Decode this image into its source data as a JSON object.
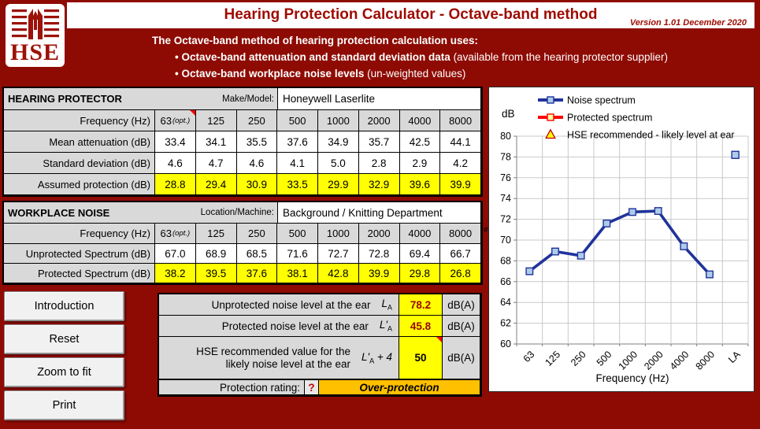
{
  "header": {
    "logo_text": "HSE",
    "title": "Hearing Protection Calculator - Octave-band method",
    "version": "Version 1.01 December 2020",
    "intro_line": "The Octave-band method of hearing protection calculation uses:",
    "bullet_glyph": "•",
    "bullets": [
      {
        "bold": "Octave-band attenuation and standard deviation data",
        "rest": " (available from the hearing protector supplier)"
      },
      {
        "bold": "Octave-band workplace noise levels",
        "rest": " (un-weighted values)"
      }
    ]
  },
  "protector": {
    "title": "HEARING PROTECTOR",
    "make_label": "Make/Model:",
    "make_value": "Honeywell Laserlite",
    "freq_label": "Frequency (Hz)",
    "freq_opt_suffix": "(opt.)",
    "freqs": [
      "63",
      "125",
      "250",
      "500",
      "1000",
      "2000",
      "4000",
      "8000"
    ],
    "mean_label": "Mean attenuation (dB)",
    "mean": [
      "33.4",
      "34.1",
      "35.5",
      "37.6",
      "34.9",
      "35.7",
      "42.5",
      "44.1"
    ],
    "sd_label": "Standard deviation (dB)",
    "sd": [
      "4.6",
      "4.7",
      "4.6",
      "4.1",
      "5.0",
      "2.8",
      "2.9",
      "4.2"
    ],
    "assumed_label": "Assumed protection (dB)",
    "assumed": [
      "28.8",
      "29.4",
      "30.9",
      "33.5",
      "29.9",
      "32.9",
      "39.6",
      "39.9"
    ]
  },
  "workplace": {
    "title": "WORKPLACE NOISE",
    "location_label": "Location/Machine:",
    "location_value": "Background / Knitting Department",
    "freq_label": "Frequency (Hz)",
    "freq_opt_suffix": "(opt.)",
    "freqs": [
      "63",
      "125",
      "250",
      "500",
      "1000",
      "2000",
      "4000",
      "8000"
    ],
    "unprotected_label": "Unprotected Spectrum (dB)",
    "unprotected": [
      "67.0",
      "68.9",
      "68.5",
      "71.6",
      "72.7",
      "72.8",
      "69.4",
      "66.7"
    ],
    "protected_label": "Protected Spectrum (dB)",
    "protected": [
      "38.2",
      "39.5",
      "37.6",
      "38.1",
      "42.8",
      "39.9",
      "29.8",
      "26.8"
    ],
    "overflow_marker": "#"
  },
  "buttons": [
    "Introduction",
    "Reset",
    "Zoom to fit",
    "Print"
  ],
  "results": {
    "row1_label": "Unprotected noise level at the ear",
    "row1_symbol": "L",
    "row1_sub": "A",
    "row1_value": "78.2",
    "row1_unit": "dB(A)",
    "row2_label": "Protected noise level at the ear",
    "row2_symbol": "L'",
    "row2_sub": "A",
    "row2_value": "45.8",
    "row2_unit": "dB(A)",
    "row3_label_line1": "HSE recommended value for the",
    "row3_label_line2": "likely noise level at the ear",
    "row3_symbol": "L'",
    "row3_sub": "A",
    "row3_suffix": " + 4",
    "row3_value": "50",
    "row3_unit": "dB(A)",
    "rating_label": "Protection rating:",
    "help_button": "?",
    "rating_value": "Over-protection"
  },
  "chart_data": {
    "type": "line",
    "ylabel": "dB",
    "xlabel": "Frequency (Hz)",
    "categories": [
      "63",
      "125",
      "250",
      "500",
      "1000",
      "2000",
      "4000",
      "8000",
      "LA"
    ],
    "ylim": [
      60,
      80
    ],
    "ytick_step": 2,
    "grid": true,
    "legend_position": "top-inside",
    "series": [
      {
        "name": "Noise spectrum",
        "values": [
          67.0,
          68.9,
          68.5,
          71.6,
          72.7,
          72.8,
          69.4,
          66.7,
          null
        ],
        "line_color": "#20339b",
        "marker_fill": "#aecbea",
        "marker": "square"
      },
      {
        "name": "Protected spectrum",
        "values": [
          38.2,
          39.5,
          37.6,
          38.1,
          42.8,
          39.9,
          29.8,
          26.8,
          null
        ],
        "line_color": "#ff0000",
        "marker_fill": "#ffff9e",
        "marker": "square",
        "note": "below y-axis range, not visible in plot"
      },
      {
        "name": "HSE recommended - likely level at ear",
        "values": [
          null,
          null,
          null,
          null,
          null,
          null,
          null,
          null,
          50
        ],
        "line_color": "#c00000",
        "marker_fill": "#ffff00",
        "marker": "triangle",
        "note": "below y-axis range, not visible in plot"
      }
    ],
    "extra_points": [
      {
        "series": 0,
        "category": "LA",
        "value": 78.2
      }
    ]
  },
  "colors": {
    "background": "#8e0b03",
    "accent_red": "#9e0b02",
    "cell_grey": "#d9d9d9",
    "highlight_yellow": "#ffff00",
    "rating_orange": "#ffc000",
    "comment_marker_red": "#ff0000"
  }
}
